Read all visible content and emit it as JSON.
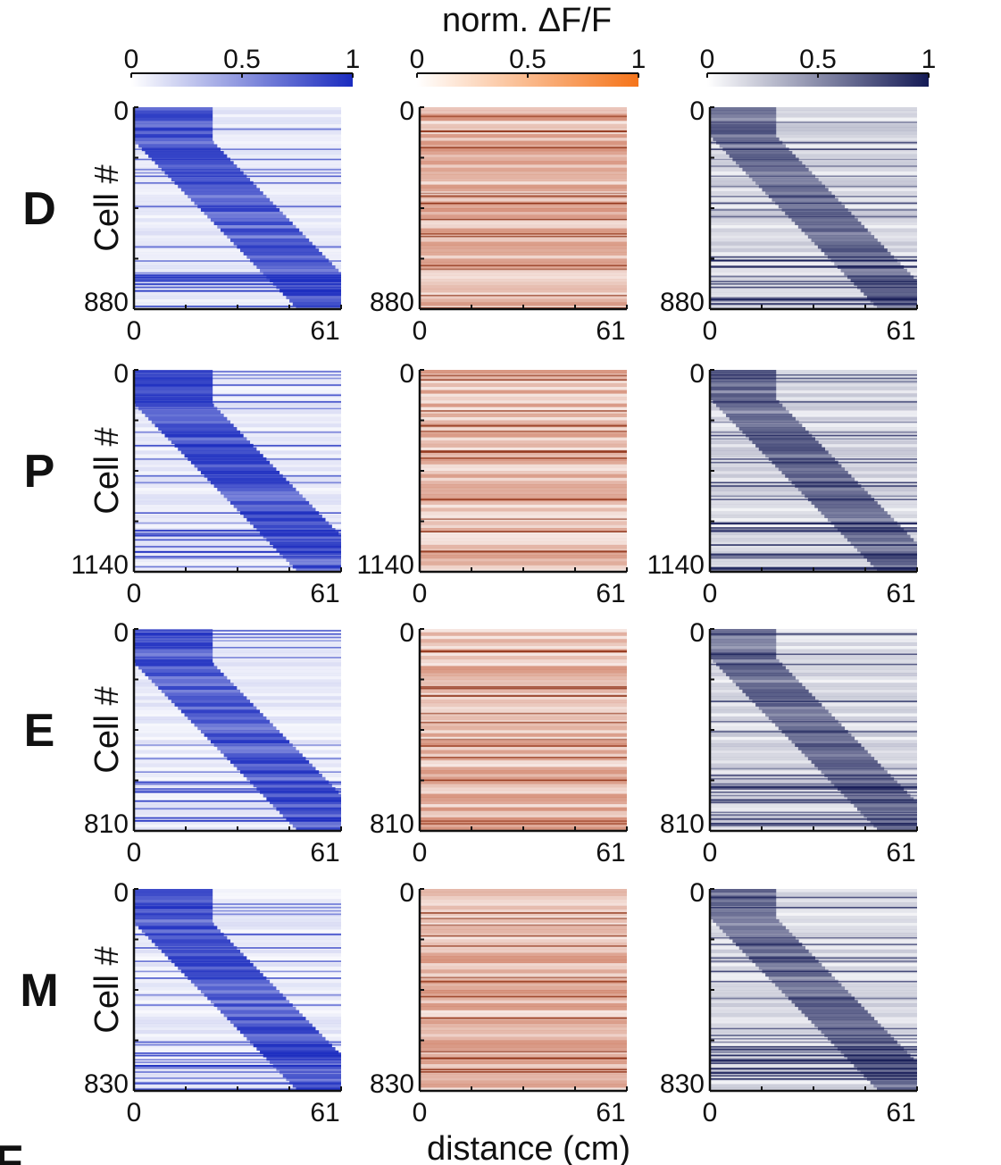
{
  "figure": {
    "colorbar_title": "norm. ΔF/F",
    "xlabel": "distance (cm)",
    "ylabel": "Cell #",
    "partial_panel_letter": "F"
  },
  "colorbars": [
    {
      "ticks": [
        "0",
        "0.5",
        "1"
      ],
      "range": [
        0,
        1
      ],
      "color_low": "#ffffff",
      "color_high": "#1a2bbf"
    },
    {
      "ticks": [
        "0",
        "0.5",
        "1"
      ],
      "range": [
        0,
        1
      ],
      "color_low": "#ffffff",
      "color_high": "#f5741a"
    },
    {
      "ticks": [
        "0",
        "0.5",
        "1"
      ],
      "range": [
        0,
        1
      ],
      "color_low": "#ffffff",
      "color_high": "#141a55"
    }
  ],
  "chart_data": [
    {
      "type": "heatmap",
      "row_label": "D",
      "cells": 880,
      "x_ticks": [
        "0",
        "61"
      ],
      "y_ticks": [
        "0",
        "880"
      ],
      "columns": [
        {
          "color": "#1a2bbf",
          "pattern": "diagonal"
        },
        {
          "color": "#b8401a",
          "pattern": "uniform"
        },
        {
          "color": "#141a55",
          "pattern": "weak-diagonal"
        }
      ]
    },
    {
      "type": "heatmap",
      "row_label": "P",
      "cells": 1140,
      "x_ticks": [
        "0",
        "61"
      ],
      "y_ticks": [
        "0",
        "1140"
      ],
      "columns": [
        {
          "color": "#1a2bbf",
          "pattern": "diagonal"
        },
        {
          "color": "#b8401a",
          "pattern": "uniform"
        },
        {
          "color": "#141a55",
          "pattern": "weak-diagonal"
        }
      ]
    },
    {
      "type": "heatmap",
      "row_label": "E",
      "cells": 810,
      "x_ticks": [
        "0",
        "61"
      ],
      "y_ticks": [
        "0",
        "810"
      ],
      "columns": [
        {
          "color": "#1a2bbf",
          "pattern": "diagonal"
        },
        {
          "color": "#b8401a",
          "pattern": "uniform"
        },
        {
          "color": "#141a55",
          "pattern": "weak-diagonal"
        }
      ]
    },
    {
      "type": "heatmap",
      "row_label": "M",
      "cells": 830,
      "x_ticks": [
        "0",
        "61"
      ],
      "y_ticks": [
        "0",
        "830"
      ],
      "columns": [
        {
          "color": "#1a2bbf",
          "pattern": "diagonal"
        },
        {
          "color": "#b8401a",
          "pattern": "uniform"
        },
        {
          "color": "#141a55",
          "pattern": "weak-diagonal"
        }
      ]
    }
  ]
}
